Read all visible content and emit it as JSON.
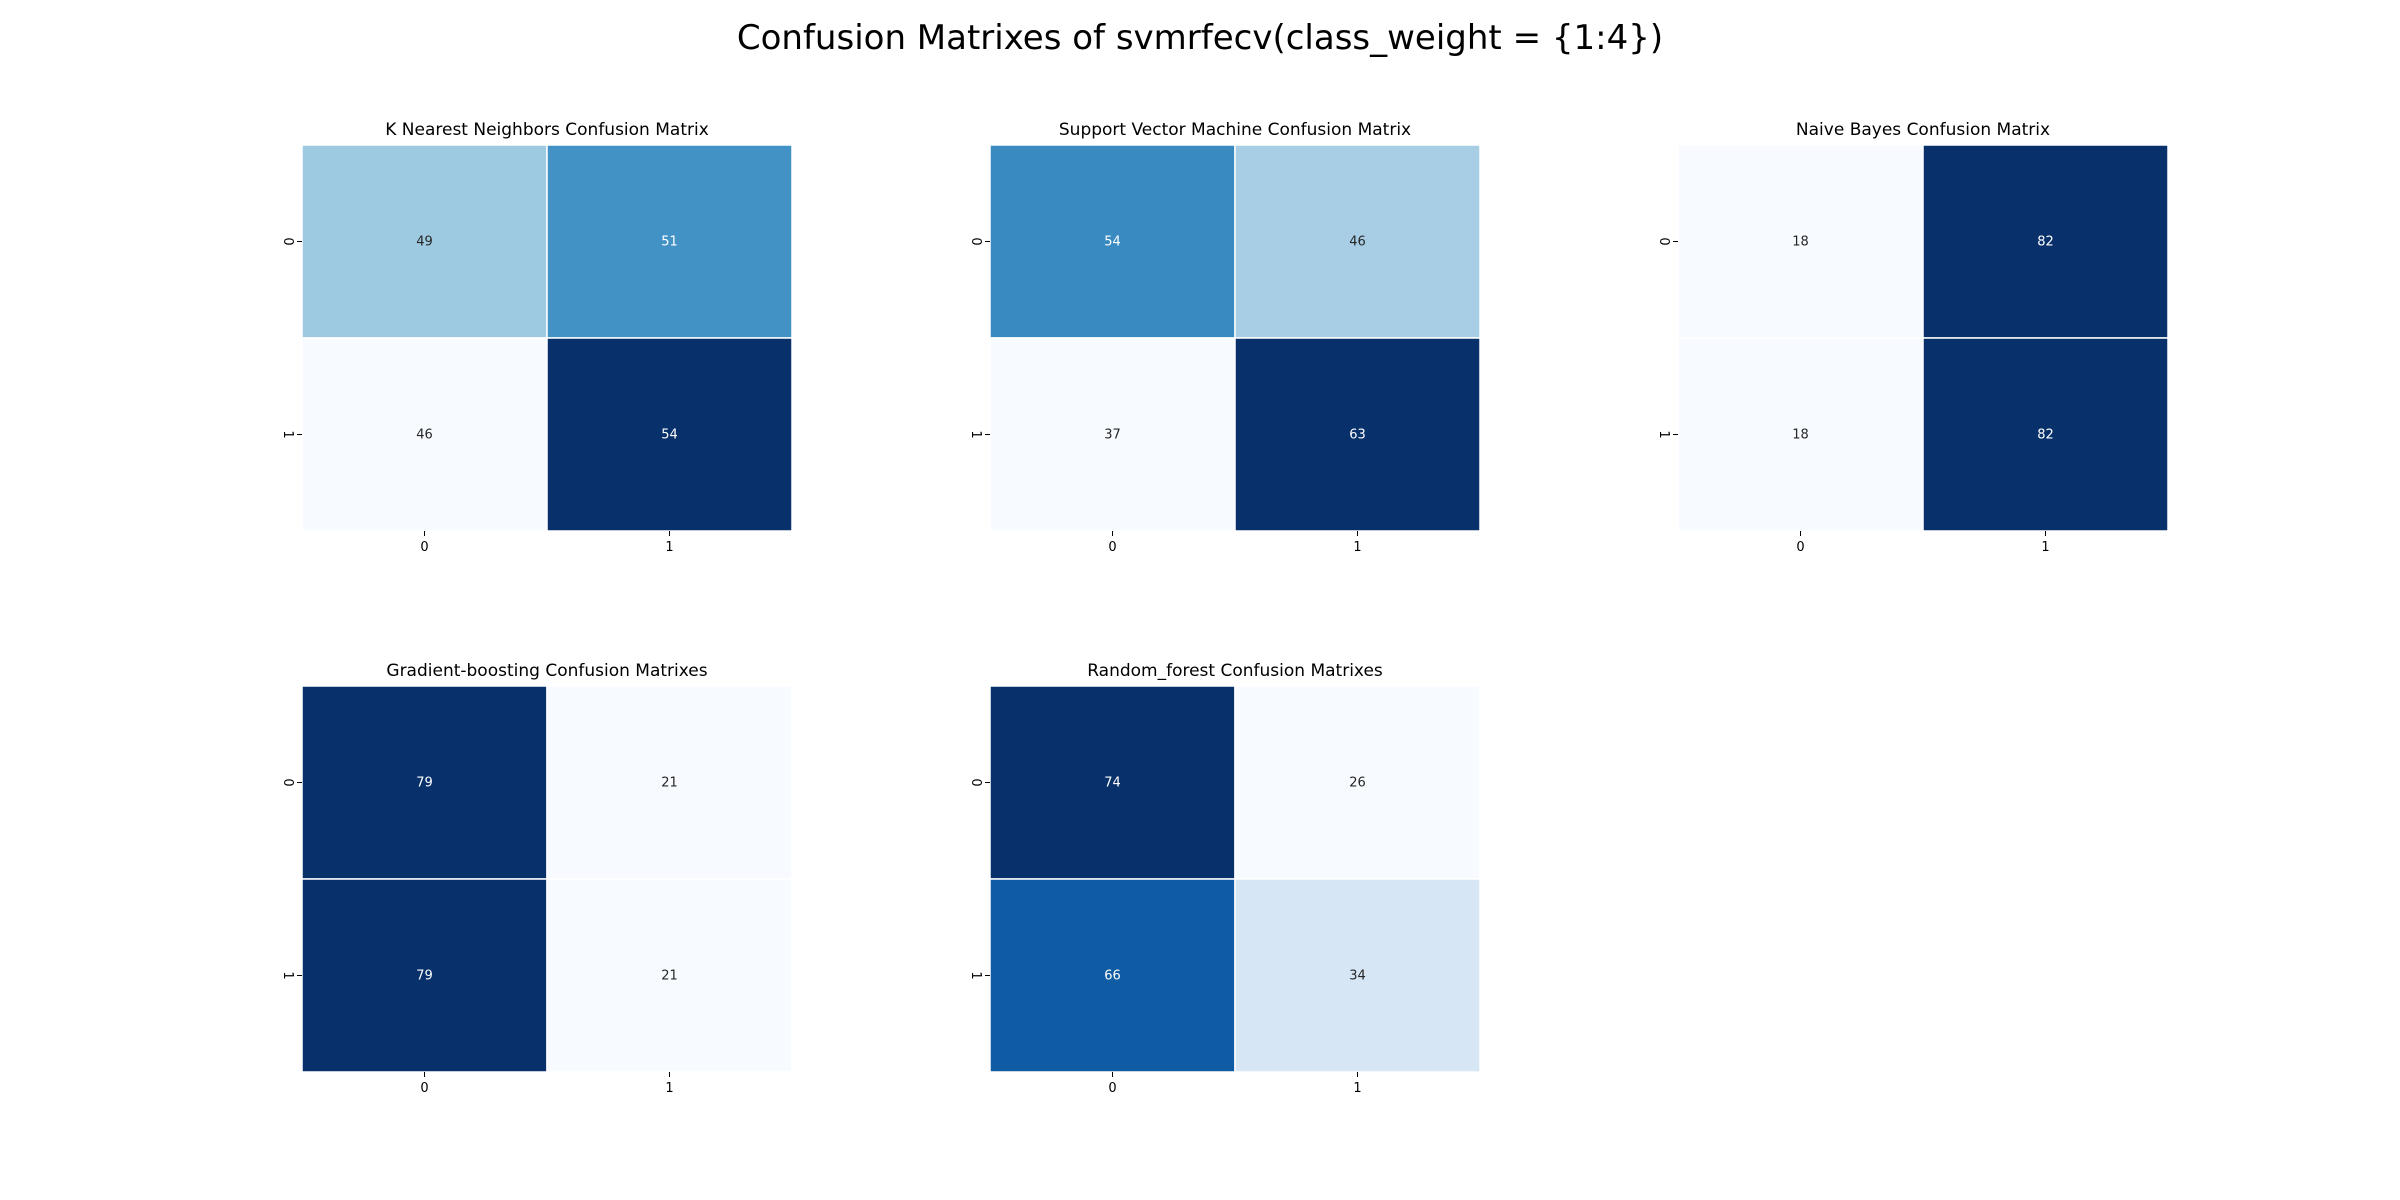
{
  "suptitle": "Confusion Matrixes of svmrfecv(class_weight = {1:4})",
  "colormap": "Blues",
  "colors": {
    "low": "#f7fbff",
    "high": "#08306b",
    "text_dark": "#262626",
    "text_light": "#ffffff"
  },
  "chart_data": [
    {
      "type": "heatmap",
      "title": "K Nearest Neighbors Confusion Matrix",
      "x_ticks": [
        "0",
        "1"
      ],
      "y_ticks": [
        "0",
        "1"
      ],
      "values": [
        [
          49,
          51
        ],
        [
          46,
          54
        ]
      ]
    },
    {
      "type": "heatmap",
      "title": "Support Vector Machine Confusion Matrix",
      "x_ticks": [
        "0",
        "1"
      ],
      "y_ticks": [
        "0",
        "1"
      ],
      "values": [
        [
          54,
          46
        ],
        [
          37,
          63
        ]
      ]
    },
    {
      "type": "heatmap",
      "title": "Naive Bayes Confusion Matrix",
      "x_ticks": [
        "0",
        "1"
      ],
      "y_ticks": [
        "0",
        "1"
      ],
      "values": [
        [
          18,
          82
        ],
        [
          18,
          82
        ]
      ]
    },
    {
      "type": "heatmap",
      "title": "Gradient-boosting Confusion Matrixes",
      "x_ticks": [
        "0",
        "1"
      ],
      "y_ticks": [
        "0",
        "1"
      ],
      "values": [
        [
          79,
          21
        ],
        [
          79,
          21
        ]
      ]
    },
    {
      "type": "heatmap",
      "title": "Random_forest Confusion Matrixes",
      "x_ticks": [
        "0",
        "1"
      ],
      "y_ticks": [
        "0",
        "1"
      ],
      "values": [
        [
          74,
          26
        ],
        [
          66,
          34
        ]
      ]
    }
  ]
}
